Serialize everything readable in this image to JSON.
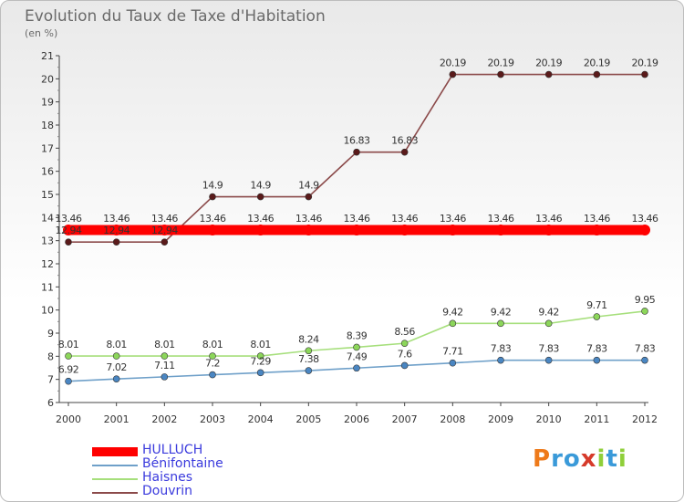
{
  "chart_data": {
    "type": "line",
    "title": "Evolution du Taux de Taxe d'Habitation",
    "subtitle": "(en %)",
    "x": [
      "2000",
      "2001",
      "2002",
      "2003",
      "2004",
      "2005",
      "2006",
      "2007",
      "2008",
      "2009",
      "2010",
      "2011",
      "2012"
    ],
    "ylim": [
      6,
      21
    ],
    "yticks": [
      6,
      7,
      8,
      9,
      10,
      11,
      12,
      13,
      14,
      15,
      16,
      17,
      18,
      19,
      20,
      21
    ],
    "grid": false,
    "legend_position": "bottom-left",
    "series": [
      {
        "name": "HULLUCH",
        "color": "#ff0000",
        "marker": "#ff0000",
        "values": [
          13.46,
          13.46,
          13.46,
          13.46,
          13.46,
          13.46,
          13.46,
          13.46,
          13.46,
          13.46,
          13.46,
          13.46,
          13.46
        ],
        "labels": [
          "13.46",
          "13.46",
          "13.46",
          "13.46",
          "13.46",
          "13.46",
          "13.46",
          "13.46",
          "13.46",
          "13.46",
          "13.46",
          "13.46",
          "13.46"
        ]
      },
      {
        "name": "Bénifontaine",
        "color": "#6fa0c9",
        "marker": "#4a86c2",
        "values": [
          6.92,
          7.02,
          7.11,
          7.2,
          7.29,
          7.38,
          7.49,
          7.6,
          7.71,
          7.83,
          7.83,
          7.83,
          7.83
        ],
        "labels": [
          "6.92",
          "7.02",
          "7.11",
          "7.2",
          "7.29",
          "7.38",
          "7.49",
          "7.6",
          "7.71",
          "7.83",
          "7.83",
          "7.83",
          "7.83"
        ]
      },
      {
        "name": "Haisnes",
        "color": "#a6df7c",
        "marker": "#8cd65a",
        "values": [
          8.01,
          8.01,
          8.01,
          8.01,
          8.01,
          8.24,
          8.39,
          8.56,
          9.42,
          9.42,
          9.42,
          9.71,
          9.95
        ],
        "labels": [
          "8.01",
          "8.01",
          "8.01",
          "8.01",
          "8.01",
          "8.24",
          "8.39",
          "8.56",
          "9.42",
          "9.42",
          "9.42",
          "9.71",
          "9.95"
        ]
      },
      {
        "name": "Douvrin",
        "color": "#8b4a4a",
        "marker": "#5a1a1a",
        "values": [
          12.94,
          12.94,
          12.94,
          14.9,
          14.9,
          14.9,
          16.83,
          16.83,
          20.19,
          20.19,
          20.19,
          20.19,
          20.19
        ],
        "labels": [
          "12.94",
          "12.94",
          "12.94",
          "14.9",
          "14.9",
          "14.9",
          "16.83",
          "16.83",
          "20.19",
          "20.19",
          "20.19",
          "20.19",
          "20.19"
        ]
      }
    ]
  },
  "legend_colors": {
    "HULLUCH": "#3a3add",
    "Bénifontaine": "#3a3add",
    "Haisnes": "#3a3add",
    "Douvrin": "#3a3add"
  },
  "logo": {
    "letters": [
      "P",
      "r",
      "o",
      "x",
      "i",
      "t",
      "i"
    ],
    "colors": [
      "#ee7a1a",
      "#3a9ad9",
      "#3a9ad9",
      "#d63a2a",
      "#8fcf3a",
      "#3a9ad9",
      "#8fcf3a"
    ]
  }
}
